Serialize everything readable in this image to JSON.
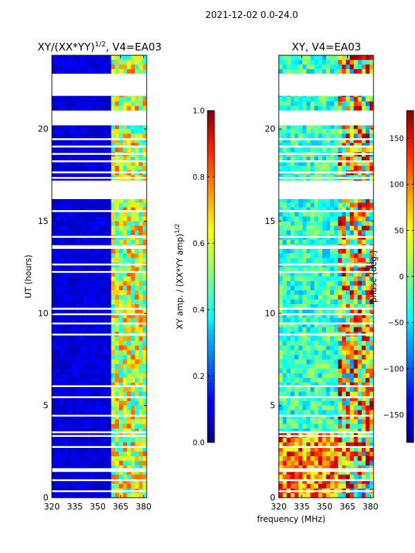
{
  "figure": {
    "suptitle": "2021-12-02 0.0-24.0",
    "xlabel_shared": "frequency (MHz)"
  },
  "chart_data": [
    {
      "type": "heatmap",
      "title": "XY/(XX*YY)",
      "title_exponent": "1/2",
      "title_suffix": ", V4=EA03",
      "xlabel": "frequency (MHz)",
      "ylabel": "UT (hours)",
      "xlim": [
        320,
        382
      ],
      "ylim": [
        0,
        24
      ],
      "xticks": [
        320,
        335,
        350,
        365,
        380
      ],
      "yticks": [
        0,
        5,
        10,
        15,
        20
      ],
      "colorbar": {
        "label": "XY amp. / (XX*YY amp)",
        "label_exponent": "1/2",
        "range": [
          0.0,
          1.0
        ],
        "ticks": [
          "0.0",
          "0.2",
          "0.4",
          "0.6",
          "0.8",
          "1.0"
        ]
      },
      "gaps_hours": [
        [
          22.8,
          23.0
        ],
        [
          21.8,
          22.95
        ],
        [
          20.2,
          21.0
        ],
        [
          19.4,
          19.5
        ],
        [
          19.0,
          19.1
        ],
        [
          18.6,
          18.7
        ],
        [
          18.2,
          18.3
        ],
        [
          17.6,
          17.7
        ],
        [
          17.3,
          17.4
        ],
        [
          16.2,
          17.2
        ],
        [
          15.5,
          15.6
        ],
        [
          14.1,
          14.2
        ],
        [
          13.5,
          13.7
        ],
        [
          12.6,
          12.7
        ],
        [
          12.2,
          12.3
        ],
        [
          10.2,
          10.3
        ],
        [
          9.9,
          10.0
        ],
        [
          9.4,
          9.5
        ],
        [
          8.8,
          8.9
        ],
        [
          6.0,
          6.1
        ],
        [
          5.4,
          5.5
        ],
        [
          4.4,
          4.5
        ],
        [
          3.5,
          3.6
        ],
        [
          3.3,
          3.4
        ],
        [
          2.7,
          2.8
        ],
        [
          1.4,
          1.6
        ],
        [
          0.9,
          1.0
        ],
        [
          0.3,
          0.4
        ]
      ]
    },
    {
      "type": "heatmap",
      "title": "XY, V4=EA03",
      "xlabel": "frequency (MHz)",
      "ylabel": "",
      "xlim": [
        320,
        382
      ],
      "ylim": [
        0,
        24
      ],
      "xticks": [
        320,
        335,
        350,
        365,
        380
      ],
      "yticks": [
        0,
        5,
        10,
        15,
        20
      ],
      "colorbar": {
        "label": "phase (deg.)",
        "range": [
          -180,
          180
        ],
        "ticks": [
          "150",
          "100",
          "50",
          "0",
          "−50",
          "−100",
          "−150"
        ]
      },
      "gaps_hours": [
        [
          22.8,
          23.0
        ],
        [
          21.8,
          22.95
        ],
        [
          20.2,
          21.0
        ],
        [
          19.4,
          19.5
        ],
        [
          19.0,
          19.1
        ],
        [
          18.6,
          18.7
        ],
        [
          18.2,
          18.3
        ],
        [
          17.6,
          17.7
        ],
        [
          17.3,
          17.4
        ],
        [
          16.2,
          17.2
        ],
        [
          15.5,
          15.6
        ],
        [
          14.1,
          14.2
        ],
        [
          13.5,
          13.7
        ],
        [
          12.6,
          12.7
        ],
        [
          12.2,
          12.3
        ],
        [
          10.2,
          10.3
        ],
        [
          9.9,
          10.0
        ],
        [
          9.4,
          9.5
        ],
        [
          8.8,
          8.9
        ],
        [
          6.0,
          6.1
        ],
        [
          5.4,
          5.5
        ],
        [
          4.4,
          4.5
        ],
        [
          3.5,
          3.6
        ],
        [
          3.3,
          3.4
        ],
        [
          2.7,
          2.8
        ],
        [
          1.4,
          1.6
        ],
        [
          0.9,
          1.0
        ],
        [
          0.3,
          0.4
        ]
      ]
    }
  ]
}
